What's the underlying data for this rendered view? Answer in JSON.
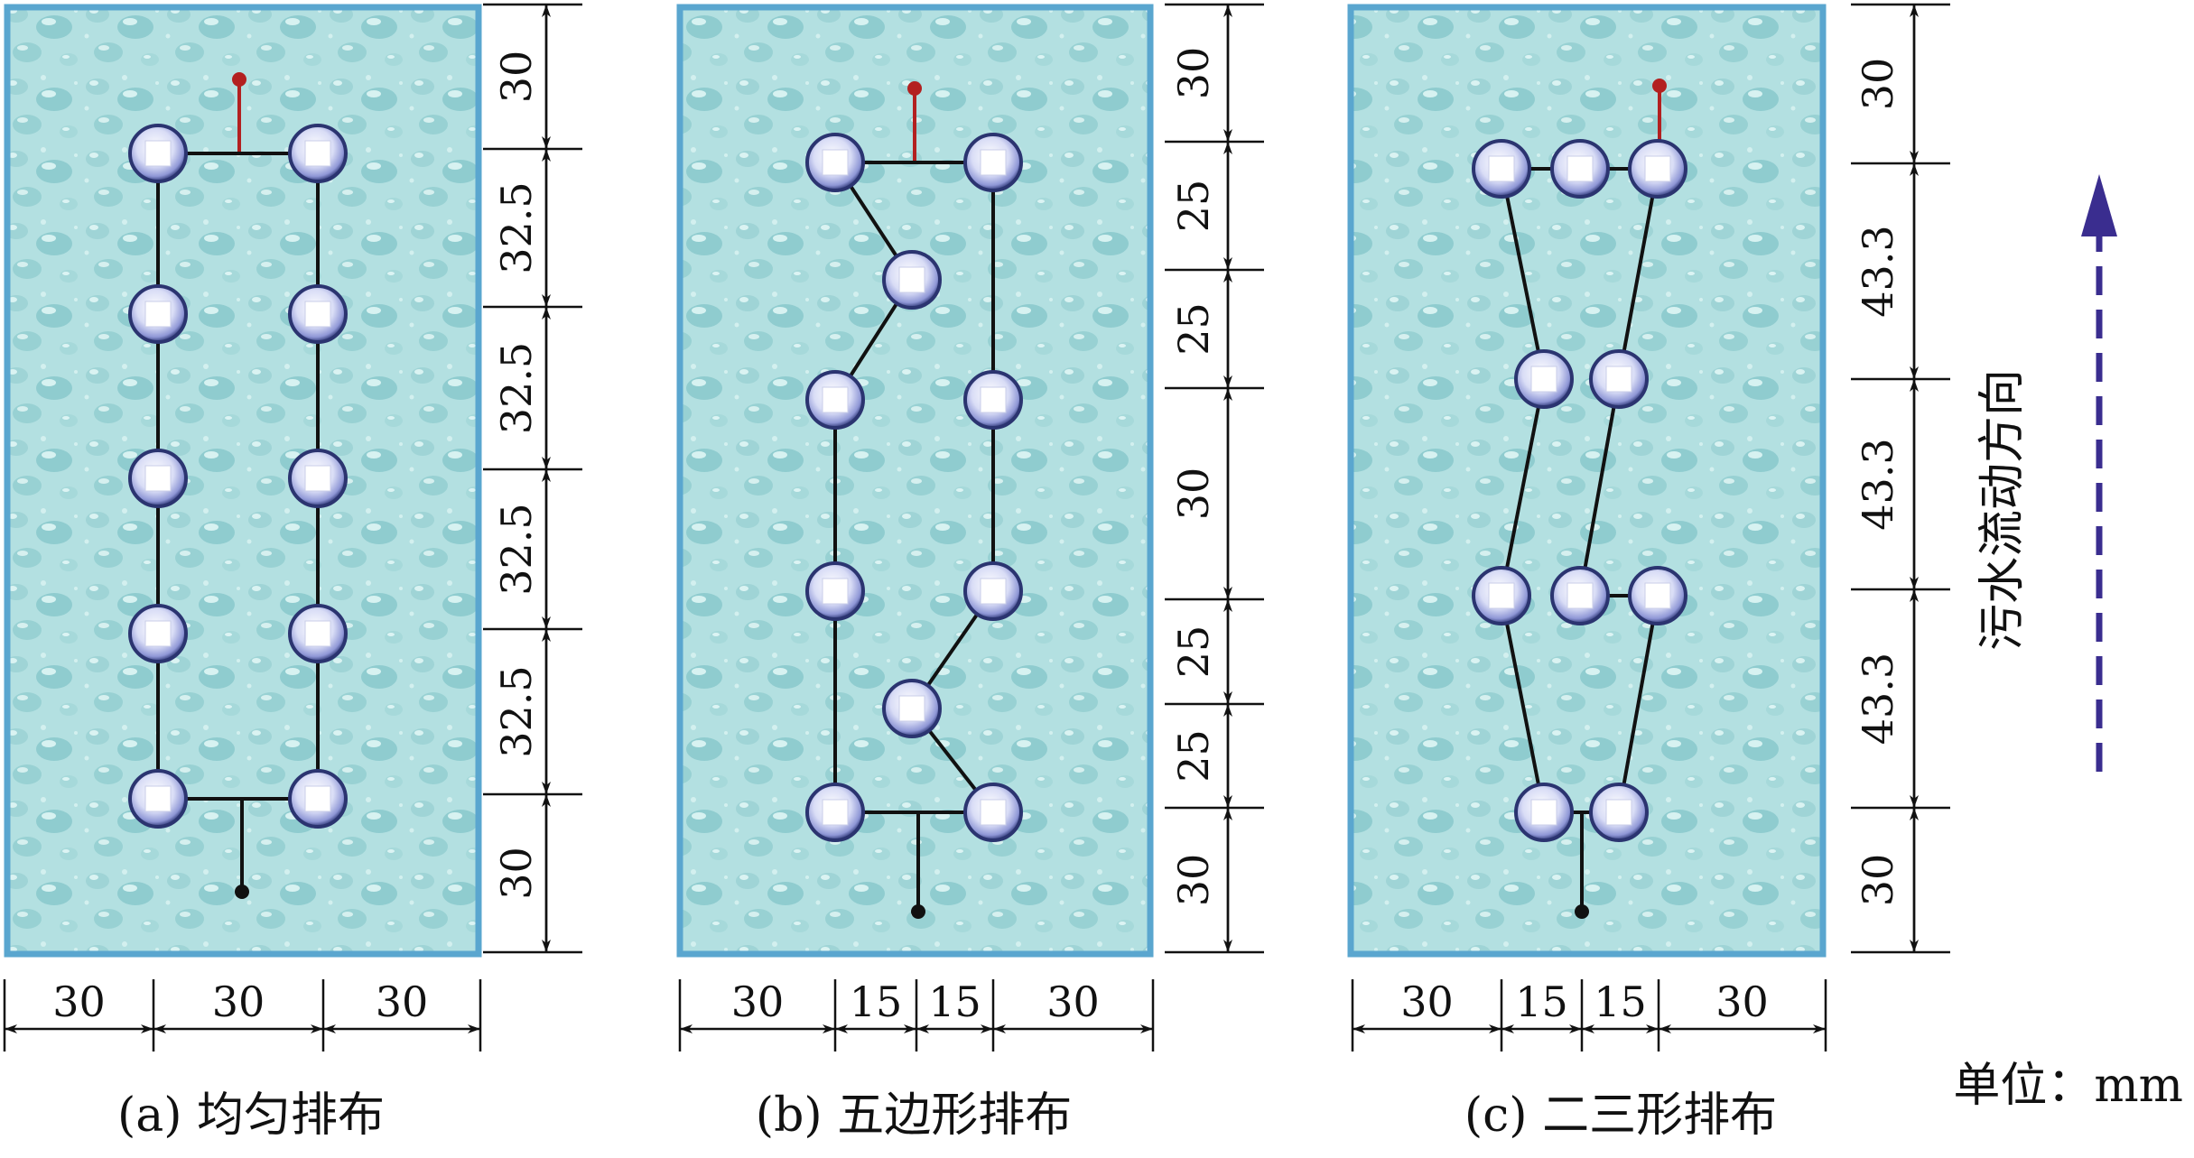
{
  "unit_note": "单位：mm",
  "flow_label": "污水流动方向",
  "colors": {
    "panel_border": "#5aa6cf",
    "water_light": "#c3ebea",
    "water_dark": "#7fc6c7",
    "wire": "#111111",
    "anode_tip": "#b32020",
    "arrow": "#3a2d8f",
    "dimension": "#111111"
  },
  "panels": [
    {
      "caption": "(a) 均匀排布",
      "vertical_dims": [
        "30",
        "32.5",
        "32.5",
        "32.5",
        "32.5",
        "30"
      ],
      "horizontal_dims": [
        "30",
        "30",
        "30"
      ]
    },
    {
      "caption": "(b) 五边形排布",
      "vertical_dims": [
        "30",
        "25",
        "25",
        "30",
        "25",
        "25",
        "30"
      ],
      "horizontal_dims": [
        "30",
        "15",
        "15",
        "30"
      ]
    },
    {
      "caption": "(c) 二三形排布",
      "vertical_dims": [
        "30",
        "43.3",
        "43.3",
        "43.3",
        "30"
      ],
      "horizontal_dims": [
        "30",
        "15",
        "15",
        "30"
      ]
    }
  ]
}
